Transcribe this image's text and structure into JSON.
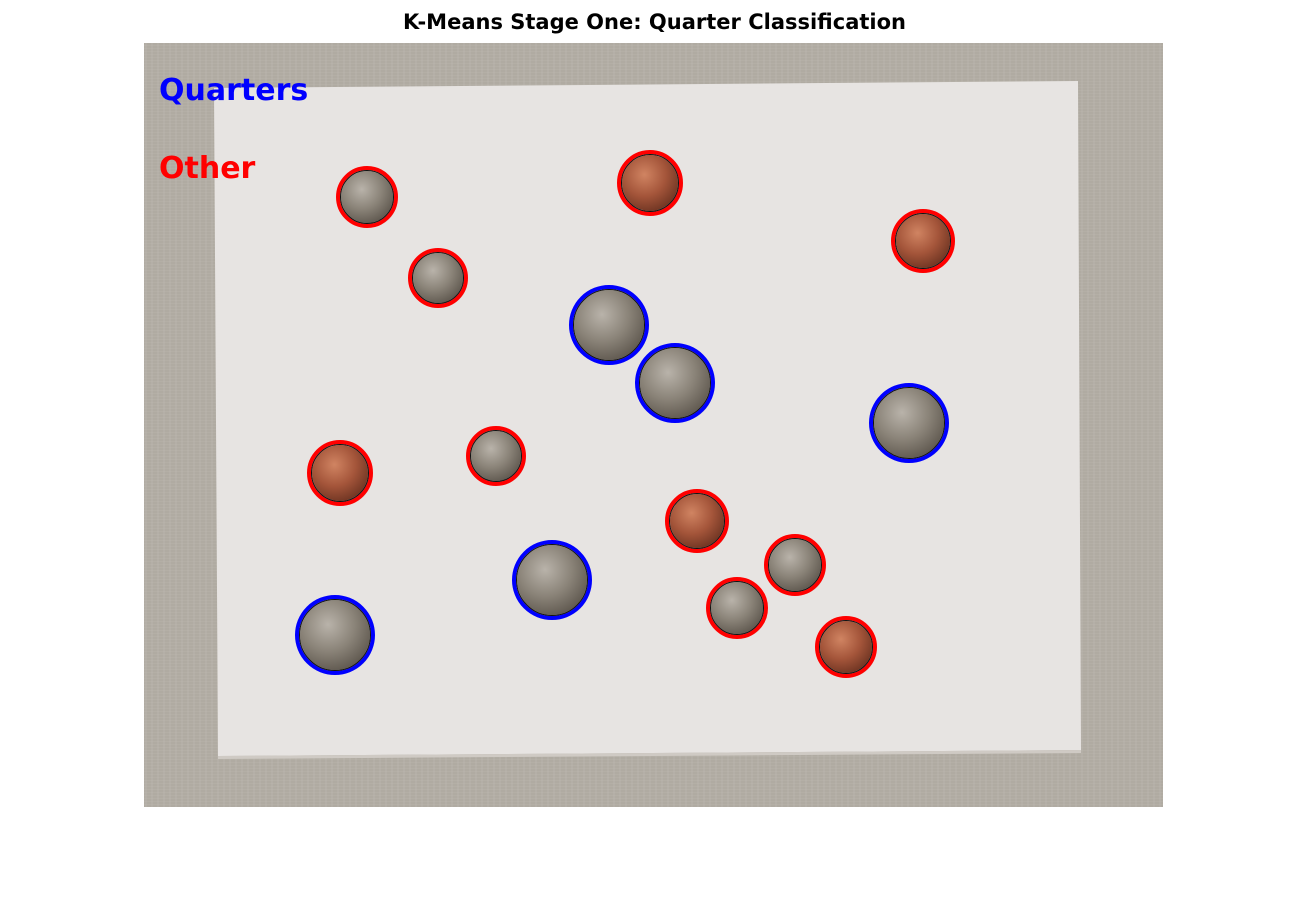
{
  "title": "K-Means Stage One: Quarter Classification",
  "legend": [
    {
      "label": "Quarters",
      "color": "#0000ff"
    },
    {
      "label": "Other",
      "color": "#ff0000"
    }
  ],
  "colors": {
    "background_fabric": "#b4afa6",
    "paper": "#e6e3e1",
    "quarter_ring": "#0000ff",
    "other_ring": "#ff0000"
  }
}
